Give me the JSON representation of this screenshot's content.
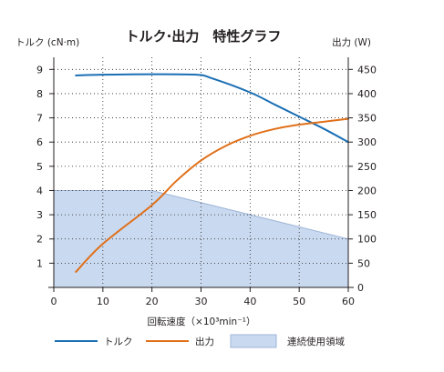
{
  "chart_data": {
    "type": "line",
    "title": "トルク·出力　特性グラフ",
    "colors": {
      "title": "#1a6fb4",
      "torque": "#1a6fb4",
      "output": "#e0701a",
      "region_fill": "#c9d9ef",
      "region_stroke": "#9fb6d8",
      "axis": "#231f20",
      "grid": "#231f20"
    },
    "xlabel": "回転速度（×10³min⁻¹）",
    "ylabel_left": "トルク (cN·m)",
    "ylabel_right": "出力 (W)",
    "xlim": [
      0,
      60
    ],
    "ylim_left": [
      0,
      9.5
    ],
    "ylim_right": [
      0,
      475
    ],
    "x_ticks": [
      0,
      10,
      20,
      30,
      40,
      50,
      60
    ],
    "y_left_ticks": [
      1,
      2,
      3,
      4,
      5,
      6,
      7,
      8,
      9
    ],
    "y_right_ticks": [
      0,
      50,
      100,
      150,
      200,
      250,
      300,
      350,
      400,
      450
    ],
    "grid": "dotted",
    "legend_position": "bottom",
    "series": [
      {
        "name": "トルク",
        "axis": "left",
        "x": [
          4.5,
          10,
          20,
          29,
          32,
          40,
          45,
          50,
          55,
          60
        ],
        "y": [
          8.75,
          8.78,
          8.8,
          8.78,
          8.65,
          8.05,
          7.55,
          7.05,
          6.55,
          6.0
        ]
      },
      {
        "name": "出力",
        "axis": "right",
        "x": [
          4.5,
          10,
          20,
          25,
          30,
          35,
          40,
          45,
          50,
          55,
          60
        ],
        "y": [
          32,
          90,
          170,
          220,
          262,
          292,
          313,
          327,
          336,
          342,
          348
        ]
      }
    ],
    "region": {
      "name": "連続使用領域",
      "axis": "left",
      "x": [
        0,
        20,
        60,
        60,
        0
      ],
      "y": [
        4,
        4,
        2,
        0,
        0
      ]
    }
  }
}
